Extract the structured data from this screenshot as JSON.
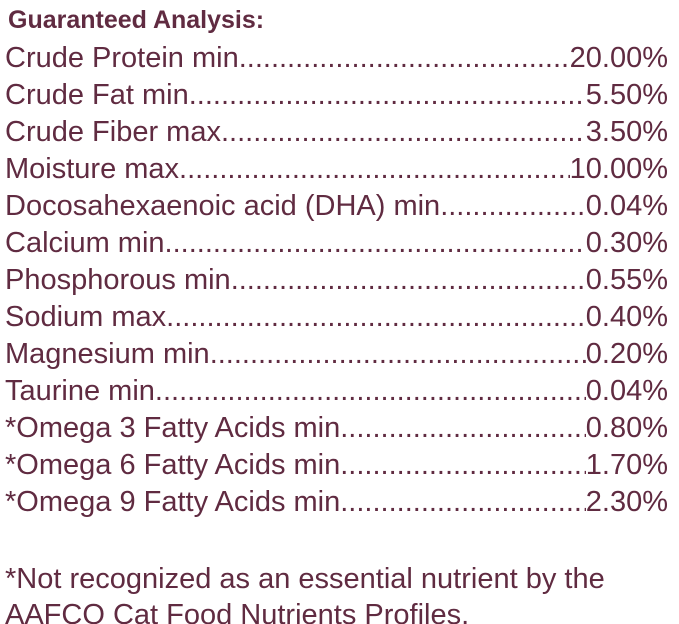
{
  "title": "Guaranteed Analysis:",
  "colors": {
    "text": "#602b41",
    "background": "#ffffff"
  },
  "analysis": {
    "rows": [
      {
        "label": "Crude Protein min",
        "value": "20.00%"
      },
      {
        "label": "Crude Fat min",
        "value": "5.50%"
      },
      {
        "label": "Crude Fiber max",
        "value": "3.50%"
      },
      {
        "label": "Moisture max",
        "value": "10.00%"
      },
      {
        "label": "Docosahexaenoic acid (DHA) min",
        "value": "0.04%"
      },
      {
        "label": "Calcium min",
        "value": "0.30%"
      },
      {
        "label": "Phosphorous min",
        "value": "0.55%"
      },
      {
        "label": "Sodium max",
        "value": "0.40%"
      },
      {
        "label": "Magnesium min",
        "value": "0.20%"
      },
      {
        "label": "Taurine min",
        "value": "0.04%"
      },
      {
        "label": "*Omega 3 Fatty Acids min",
        "value": "0.80%"
      },
      {
        "label": "*Omega 6 Fatty Acids min",
        "value": "1.70%"
      },
      {
        "label": "*Omega 9 Fatty Acids min",
        "value": "2.30%"
      }
    ]
  },
  "footnote": {
    "line1": "*Not recognized as an essential nutrient by the",
    "line2": "AAFCO Cat Food Nutrients Profiles."
  }
}
